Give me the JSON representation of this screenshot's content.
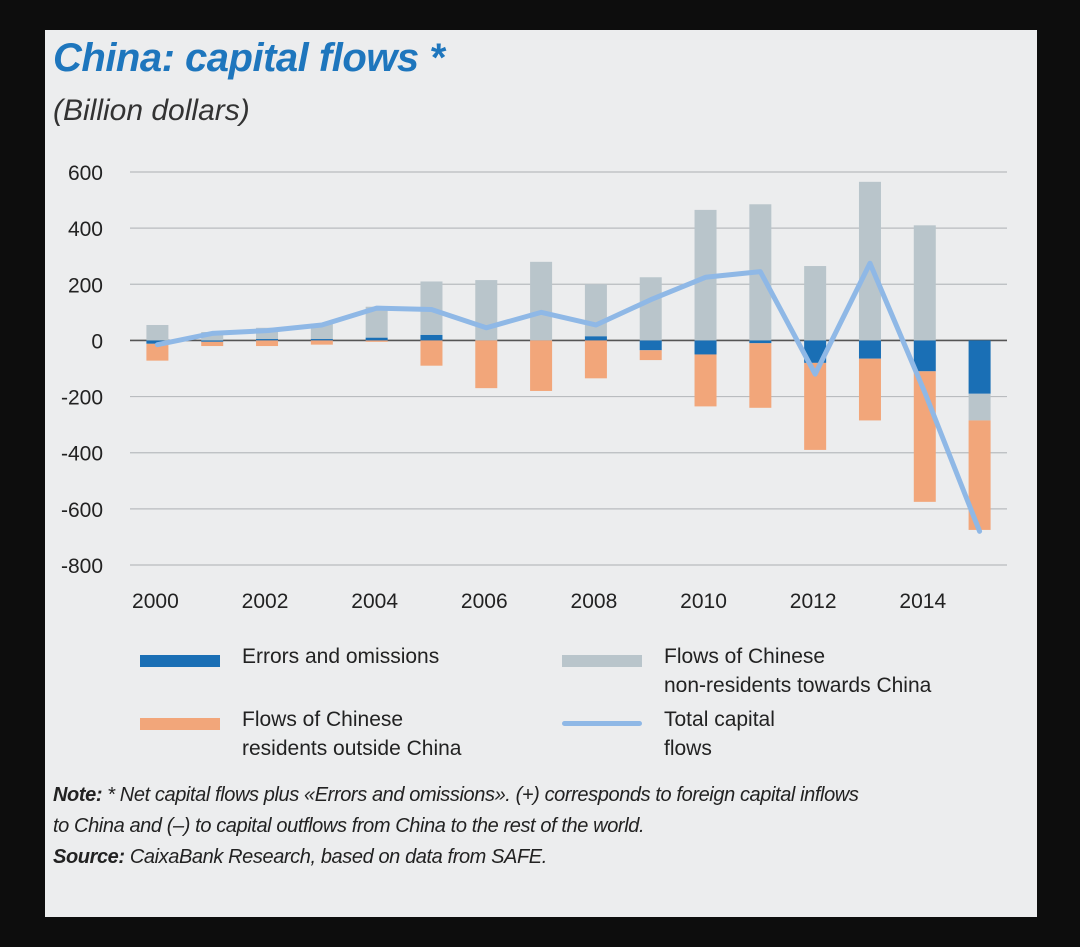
{
  "title": "China: capital flows *",
  "subtitle": "(Billion dollars)",
  "colors": {
    "errors": "#1a6fb5",
    "nonresidents": "#b9c5cb",
    "residents": "#f2a67a",
    "total": "#8fb8e6"
  },
  "legend": [
    {
      "key": "errors",
      "kind": "bar",
      "label": "Errors and omissions"
    },
    {
      "key": "nonresidents",
      "kind": "bar",
      "label": "Flows of Chinese\nnon-residents towards China"
    },
    {
      "key": "residents",
      "kind": "bar",
      "label": "Flows of Chinese\nresidents outside China"
    },
    {
      "key": "total",
      "kind": "line",
      "label": "Total capital\nflows"
    }
  ],
  "notes": {
    "note_label": "Note:",
    "note_text": " * Net capital flows plus «Errors and omissions». (+) corresponds to foreign capital inflows",
    "note_text2": "to China and (–) to capital outflows from China to the rest of the world.",
    "source_label": "Source:",
    "source_text": " CaixaBank Research, based on data from SAFE."
  },
  "chart_data": {
    "type": "bar",
    "stacked": true,
    "title": "China: capital flows *",
    "subtitle": "(Billion dollars)",
    "categories": [
      2000,
      2001,
      2002,
      2003,
      2004,
      2005,
      2006,
      2007,
      2008,
      2009,
      2010,
      2011,
      2012,
      2013,
      2014,
      2015
    ],
    "x_tick_labels": [
      "2000",
      "2002",
      "2004",
      "2006",
      "2008",
      "2010",
      "2012",
      "2014"
    ],
    "y_tick_labels": [
      "600",
      "400",
      "200",
      "0",
      "-200",
      "-400",
      "-600",
      "-800"
    ],
    "ylim": [
      -800,
      600
    ],
    "y_ticks": [
      600,
      400,
      200,
      0,
      -200,
      -400,
      -600,
      -800
    ],
    "grid": true,
    "legend_position": "bottom",
    "series": [
      {
        "name": "Errors and omissions",
        "kind": "bar",
        "color": "#1a6fb5",
        "values": [
          -12,
          -5,
          5,
          5,
          10,
          20,
          0,
          0,
          15,
          -35,
          -50,
          -10,
          -80,
          -65,
          -110,
          -190
        ]
      },
      {
        "name": "Flows of Chinese non-residents towards China",
        "kind": "bar",
        "color": "#b9c5cb",
        "values": [
          55,
          30,
          40,
          55,
          110,
          190,
          215,
          280,
          185,
          225,
          465,
          485,
          265,
          565,
          410,
          -95
        ]
      },
      {
        "name": "Flows of Chinese residents outside China",
        "kind": "bar",
        "color": "#f2a67a",
        "values": [
          -60,
          -15,
          -20,
          -15,
          -5,
          -90,
          -170,
          -180,
          -135,
          -35,
          -185,
          -230,
          -310,
          -220,
          -465,
          -390
        ]
      },
      {
        "name": "Total capital flows",
        "kind": "line",
        "color": "#8fb8e6",
        "values": [
          -15,
          25,
          35,
          55,
          115,
          110,
          45,
          100,
          55,
          145,
          225,
          245,
          -120,
          275,
          -185,
          -680
        ]
      }
    ]
  }
}
